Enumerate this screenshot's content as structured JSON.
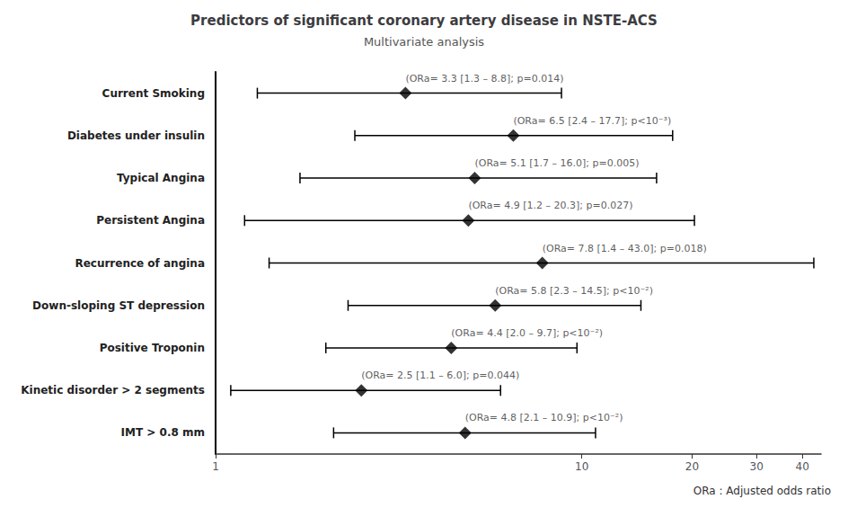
{
  "chart_data": {
    "type": "forest",
    "title": "Predictors of significant coronary artery disease in NSTE-ACS",
    "subtitle": "Multivariate analysis",
    "footnote": "ORa : Adjusted odds ratio",
    "categories": [
      "Current Smoking",
      "Diabetes under insulin",
      "Typical Angina",
      "Persistent Angina",
      "Recurrence of angina",
      "Down-sloping ST depression",
      "Positive Troponin",
      "Kinetic disorder > 2 segments",
      "IMT > 0.8 mm"
    ],
    "values": [
      3.3,
      6.5,
      5.1,
      4.9,
      7.8,
      5.8,
      4.4,
      2.5,
      4.8
    ],
    "ci_lower": [
      1.3,
      2.4,
      1.7,
      1.2,
      1.4,
      2.3,
      2.0,
      1.1,
      2.1
    ],
    "ci_upper": [
      8.8,
      17.7,
      16.0,
      20.3,
      43.0,
      14.5,
      9.7,
      6.0,
      10.9
    ],
    "value_labels": [
      "(ORa= 3.3 [1.3 – 8.8]; p=0.014)",
      "(ORa= 6.5 [2.4 – 17.7]; p<10⁻³)",
      "(ORa= 5.1 [1.7 – 16.0]; p=0.005)",
      "(ORa= 4.9 [1.2 – 20.3]; p=0.027)",
      "(ORa= 7.8 [1.4 – 43.0]; p=0.018)",
      "(ORa= 5.8 [2.3 – 14.5]; p<10⁻²)",
      "(ORa= 4.4 [2.0 – 9.7]; p<10⁻²)",
      "(ORa= 2.5 [1.1 – 6.0]; p=0.044)",
      "(ORa= 4.8 [2.1 – 10.9]; p<10⁻²)"
    ],
    "data_labels": true,
    "log": "x",
    "xlim": [
      1,
      45
    ],
    "xticks": [
      1,
      10,
      20,
      30,
      40
    ],
    "grid": false,
    "color": "#000000",
    "marker": "diamond"
  }
}
